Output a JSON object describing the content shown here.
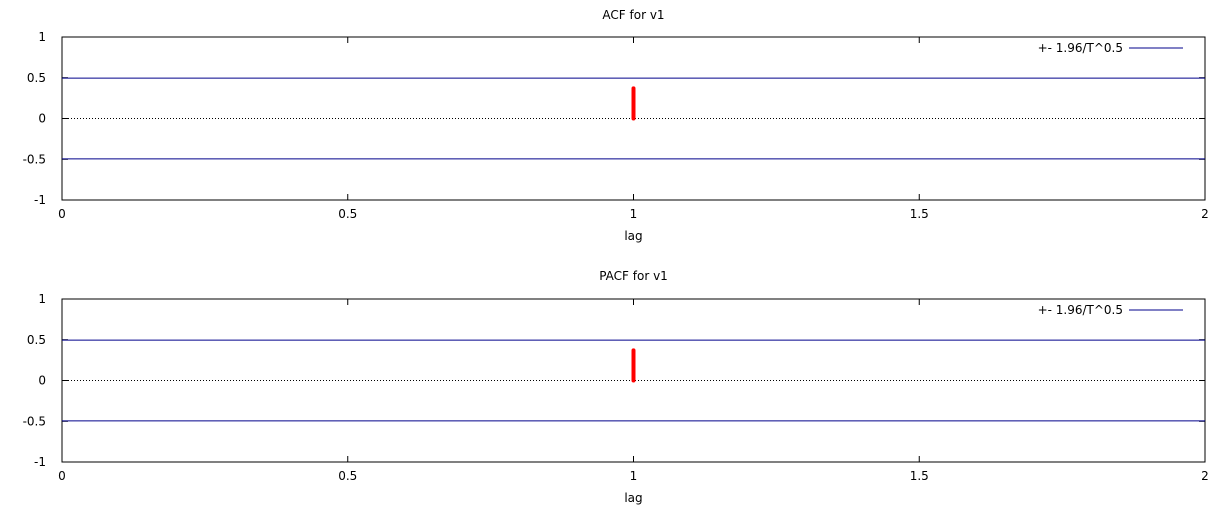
{
  "chart_data": [
    {
      "type": "bar",
      "title": "ACF for v1",
      "xlabel": "lag",
      "ylabel": "",
      "xlim": [
        0,
        2
      ],
      "ylim": [
        -1,
        1
      ],
      "x_ticks": [
        "0",
        "0.5",
        "1",
        "1.5",
        "2"
      ],
      "y_ticks": [
        "1",
        "0.5",
        "0",
        "-0.5",
        "-1"
      ],
      "grid": false,
      "legend_position": "top-right",
      "series": [
        {
          "type": "bar",
          "x": [
            1
          ],
          "values": [
            0.37
          ],
          "color": "#ff0000"
        },
        {
          "type": "line",
          "name": "+- 1.96/T^0.5",
          "values": [
            0.4952,
            -0.4952
          ],
          "color": "#00008b"
        }
      ],
      "zero_line": true
    },
    {
      "type": "bar",
      "title": "PACF for v1",
      "xlabel": "lag",
      "ylabel": "",
      "xlim": [
        0,
        2
      ],
      "ylim": [
        -1,
        1
      ],
      "x_ticks": [
        "0",
        "0.5",
        "1",
        "1.5",
        "2"
      ],
      "y_ticks": [
        "1",
        "0.5",
        "0",
        "-0.5",
        "-1"
      ],
      "grid": false,
      "legend_position": "top-right",
      "series": [
        {
          "type": "bar",
          "x": [
            1
          ],
          "values": [
            0.37
          ],
          "color": "#ff0000"
        },
        {
          "type": "line",
          "name": "+- 1.96/T^0.5",
          "values": [
            0.4952,
            -0.4952
          ],
          "color": "#00008b"
        }
      ],
      "zero_line": true
    }
  ]
}
